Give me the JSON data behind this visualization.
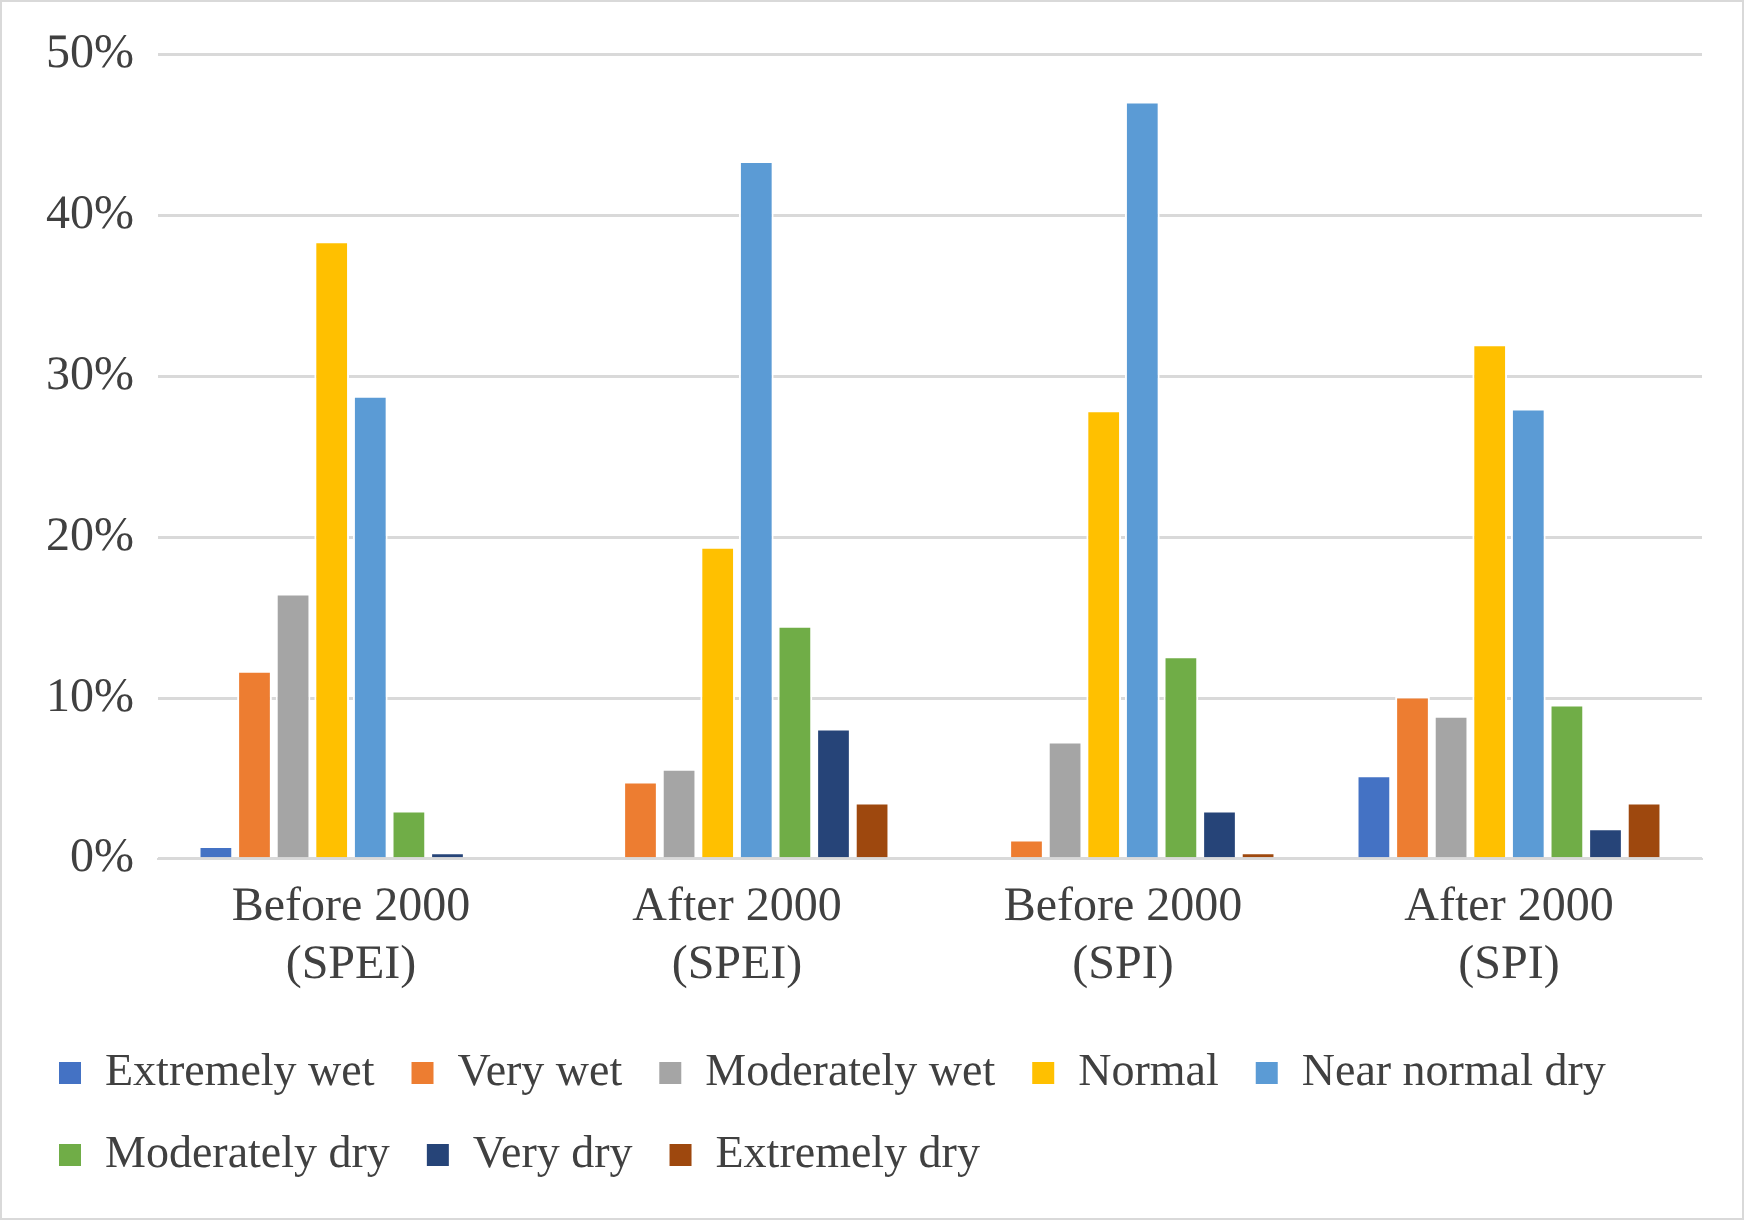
{
  "chart_data": {
    "type": "bar",
    "categories": [
      "Before 2000 (SPEI)",
      "After 2000 (SPEI)",
      "Before 2000 (SPI)",
      "After 2000 (SPI)"
    ],
    "series": [
      {
        "name": "Extremely wet",
        "color": "#4472c4",
        "values": [
          0.8,
          0,
          0,
          5.2
        ]
      },
      {
        "name": "Very wet",
        "color": "#ed7d31",
        "values": [
          11.7,
          4.8,
          1.2,
          10.1
        ]
      },
      {
        "name": "Moderately wet",
        "color": "#a5a5a5",
        "values": [
          16.5,
          5.6,
          7.3,
          8.9
        ]
      },
      {
        "name": "Normal",
        "color": "#ffc000",
        "values": [
          38.4,
          19.4,
          27.9,
          32.0
        ]
      },
      {
        "name": "Near normal dry",
        "color": "#5b9bd5",
        "values": [
          28.8,
          43.4,
          47.1,
          28.0
        ]
      },
      {
        "name": "Moderately dry",
        "color": "#70ad47",
        "values": [
          3.0,
          14.5,
          12.6,
          9.6
        ]
      },
      {
        "name": "Very dry",
        "color": "#264478",
        "values": [
          0.4,
          8.1,
          3.0,
          1.9
        ]
      },
      {
        "name": "Extremely dry",
        "color": "#9e480e",
        "values": [
          0,
          3.5,
          0.4,
          3.5
        ]
      }
    ],
    "ylim": [
      0,
      50
    ],
    "yticks": [
      {
        "value": 0,
        "label": "0%"
      },
      {
        "value": 10,
        "label": "10%"
      },
      {
        "value": 20,
        "label": "20%"
      },
      {
        "value": 30,
        "label": "30%"
      },
      {
        "value": 40,
        "label": "40%"
      },
      {
        "value": 50,
        "label": "50%"
      }
    ],
    "grid": "y",
    "legend": "bottom"
  }
}
